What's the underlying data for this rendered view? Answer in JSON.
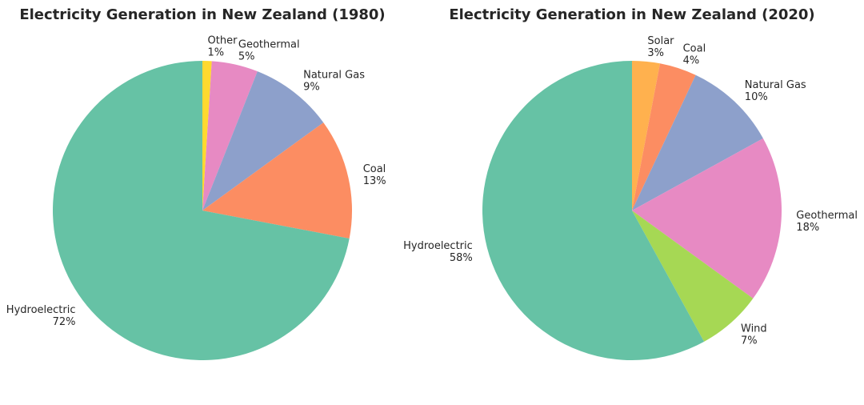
{
  "chart_data": [
    {
      "type": "pie",
      "title": "Electricity Generation in New Zealand (1980)",
      "start_angle_deg": 90,
      "direction": "clockwise",
      "slices": [
        {
          "label": "Other",
          "value": 1,
          "pct_label": "1%",
          "color": "#ffd92f"
        },
        {
          "label": "Geothermal",
          "value": 5,
          "pct_label": "5%",
          "color": "#e78ac3"
        },
        {
          "label": "Natural Gas",
          "value": 9,
          "pct_label": "9%",
          "color": "#8da0cb"
        },
        {
          "label": "Coal",
          "value": 13,
          "pct_label": "13%",
          "color": "#fc8d62"
        },
        {
          "label": "Hydroelectric",
          "value": 72,
          "pct_label": "72%",
          "color": "#66c2a5"
        }
      ]
    },
    {
      "type": "pie",
      "title": "Electricity Generation in New Zealand (2020)",
      "start_angle_deg": 90,
      "direction": "clockwise",
      "slices": [
        {
          "label": "Solar",
          "value": 3,
          "pct_label": "3%",
          "color": "#ffb14e"
        },
        {
          "label": "Coal",
          "value": 4,
          "pct_label": "4%",
          "color": "#fc8d62"
        },
        {
          "label": "Natural Gas",
          "value": 10,
          "pct_label": "10%",
          "color": "#8da0cb"
        },
        {
          "label": "Geothermal",
          "value": 18,
          "pct_label": "18%",
          "color": "#e78ac3"
        },
        {
          "label": "Wind",
          "value": 7,
          "pct_label": "7%",
          "color": "#a6d854"
        },
        {
          "label": "Hydroelectric",
          "value": 58,
          "pct_label": "58%",
          "color": "#66c2a5"
        }
      ]
    }
  ]
}
